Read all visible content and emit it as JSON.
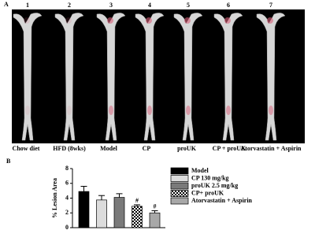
{
  "panel_a": {
    "label": "A",
    "lane_numbers": [
      "1",
      "2",
      "3",
      "4",
      "5",
      "6",
      "7"
    ],
    "lane_labels": [
      "Chow diet",
      "HFD (8wks)",
      "Model",
      "CP",
      "proUK",
      "CP + proUK",
      "Atorvastatin + Aspirin"
    ]
  },
  "panel_b": {
    "label": "B",
    "chart_data": {
      "type": "bar",
      "y_label": "% Lesion Area",
      "categories": [
        "Model",
        "CP 130 mg/kg",
        "proUK 2.5 mg/kg",
        "CP+ proUK",
        "Atorvastatin + Aspirin"
      ],
      "values": [
        4.9,
        3.75,
        4.1,
        2.9,
        2.0
      ],
      "errors": [
        0.7,
        0.6,
        0.5,
        0.2,
        0.3
      ],
      "colors": [
        "#000000",
        "#dcdcdc",
        "#7a7a7a",
        "#ffffff",
        "#a8a8a8"
      ],
      "checkered": [
        false,
        false,
        false,
        true,
        false
      ],
      "annotations": [
        null,
        null,
        null,
        "#",
        "#"
      ],
      "ylim": [
        0,
        8
      ],
      "yticks": [
        0,
        2,
        4,
        6,
        8
      ]
    }
  }
}
